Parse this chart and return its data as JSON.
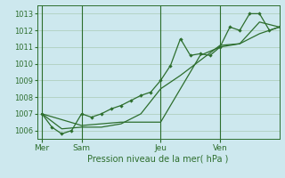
{
  "title": "Pression niveau de la mer( hPa )",
  "bg_color": "#cde8ee",
  "grid_color": "#aacbb5",
  "line_color": "#2d6e2d",
  "ylim": [
    1005.5,
    1013.5
  ],
  "yticks": [
    1006,
    1007,
    1008,
    1009,
    1010,
    1011,
    1012,
    1013
  ],
  "day_labels": [
    "Mer",
    "Sam",
    "Jeu",
    "Ven"
  ],
  "day_positions": [
    0,
    16,
    48,
    72
  ],
  "xlim": [
    -2,
    96
  ],
  "series1_x": [
    0,
    4,
    8,
    12,
    16,
    20,
    24,
    28,
    32,
    36,
    40,
    44,
    48,
    52,
    56,
    60,
    64,
    68,
    72,
    76,
    80,
    84,
    88,
    92,
    96
  ],
  "series1_y": [
    1007.0,
    1006.2,
    1005.8,
    1006.0,
    1007.0,
    1006.8,
    1007.0,
    1007.3,
    1007.5,
    1007.8,
    1008.1,
    1008.3,
    1009.0,
    1009.9,
    1011.5,
    1010.5,
    1010.6,
    1010.5,
    1011.0,
    1012.2,
    1012.0,
    1013.0,
    1013.0,
    1012.0,
    1012.2
  ],
  "series2_x": [
    0,
    8,
    16,
    24,
    32,
    40,
    48,
    56,
    64,
    72,
    80,
    88,
    96
  ],
  "series2_y": [
    1007.0,
    1006.1,
    1006.2,
    1006.2,
    1006.4,
    1007.0,
    1008.5,
    1009.3,
    1010.2,
    1011.1,
    1011.2,
    1011.8,
    1012.2
  ],
  "series3_x": [
    0,
    16,
    32,
    48,
    64,
    72,
    80,
    88,
    96
  ],
  "series3_y": [
    1007.0,
    1006.3,
    1006.5,
    1006.5,
    1010.5,
    1011.0,
    1011.2,
    1012.5,
    1012.2
  ]
}
